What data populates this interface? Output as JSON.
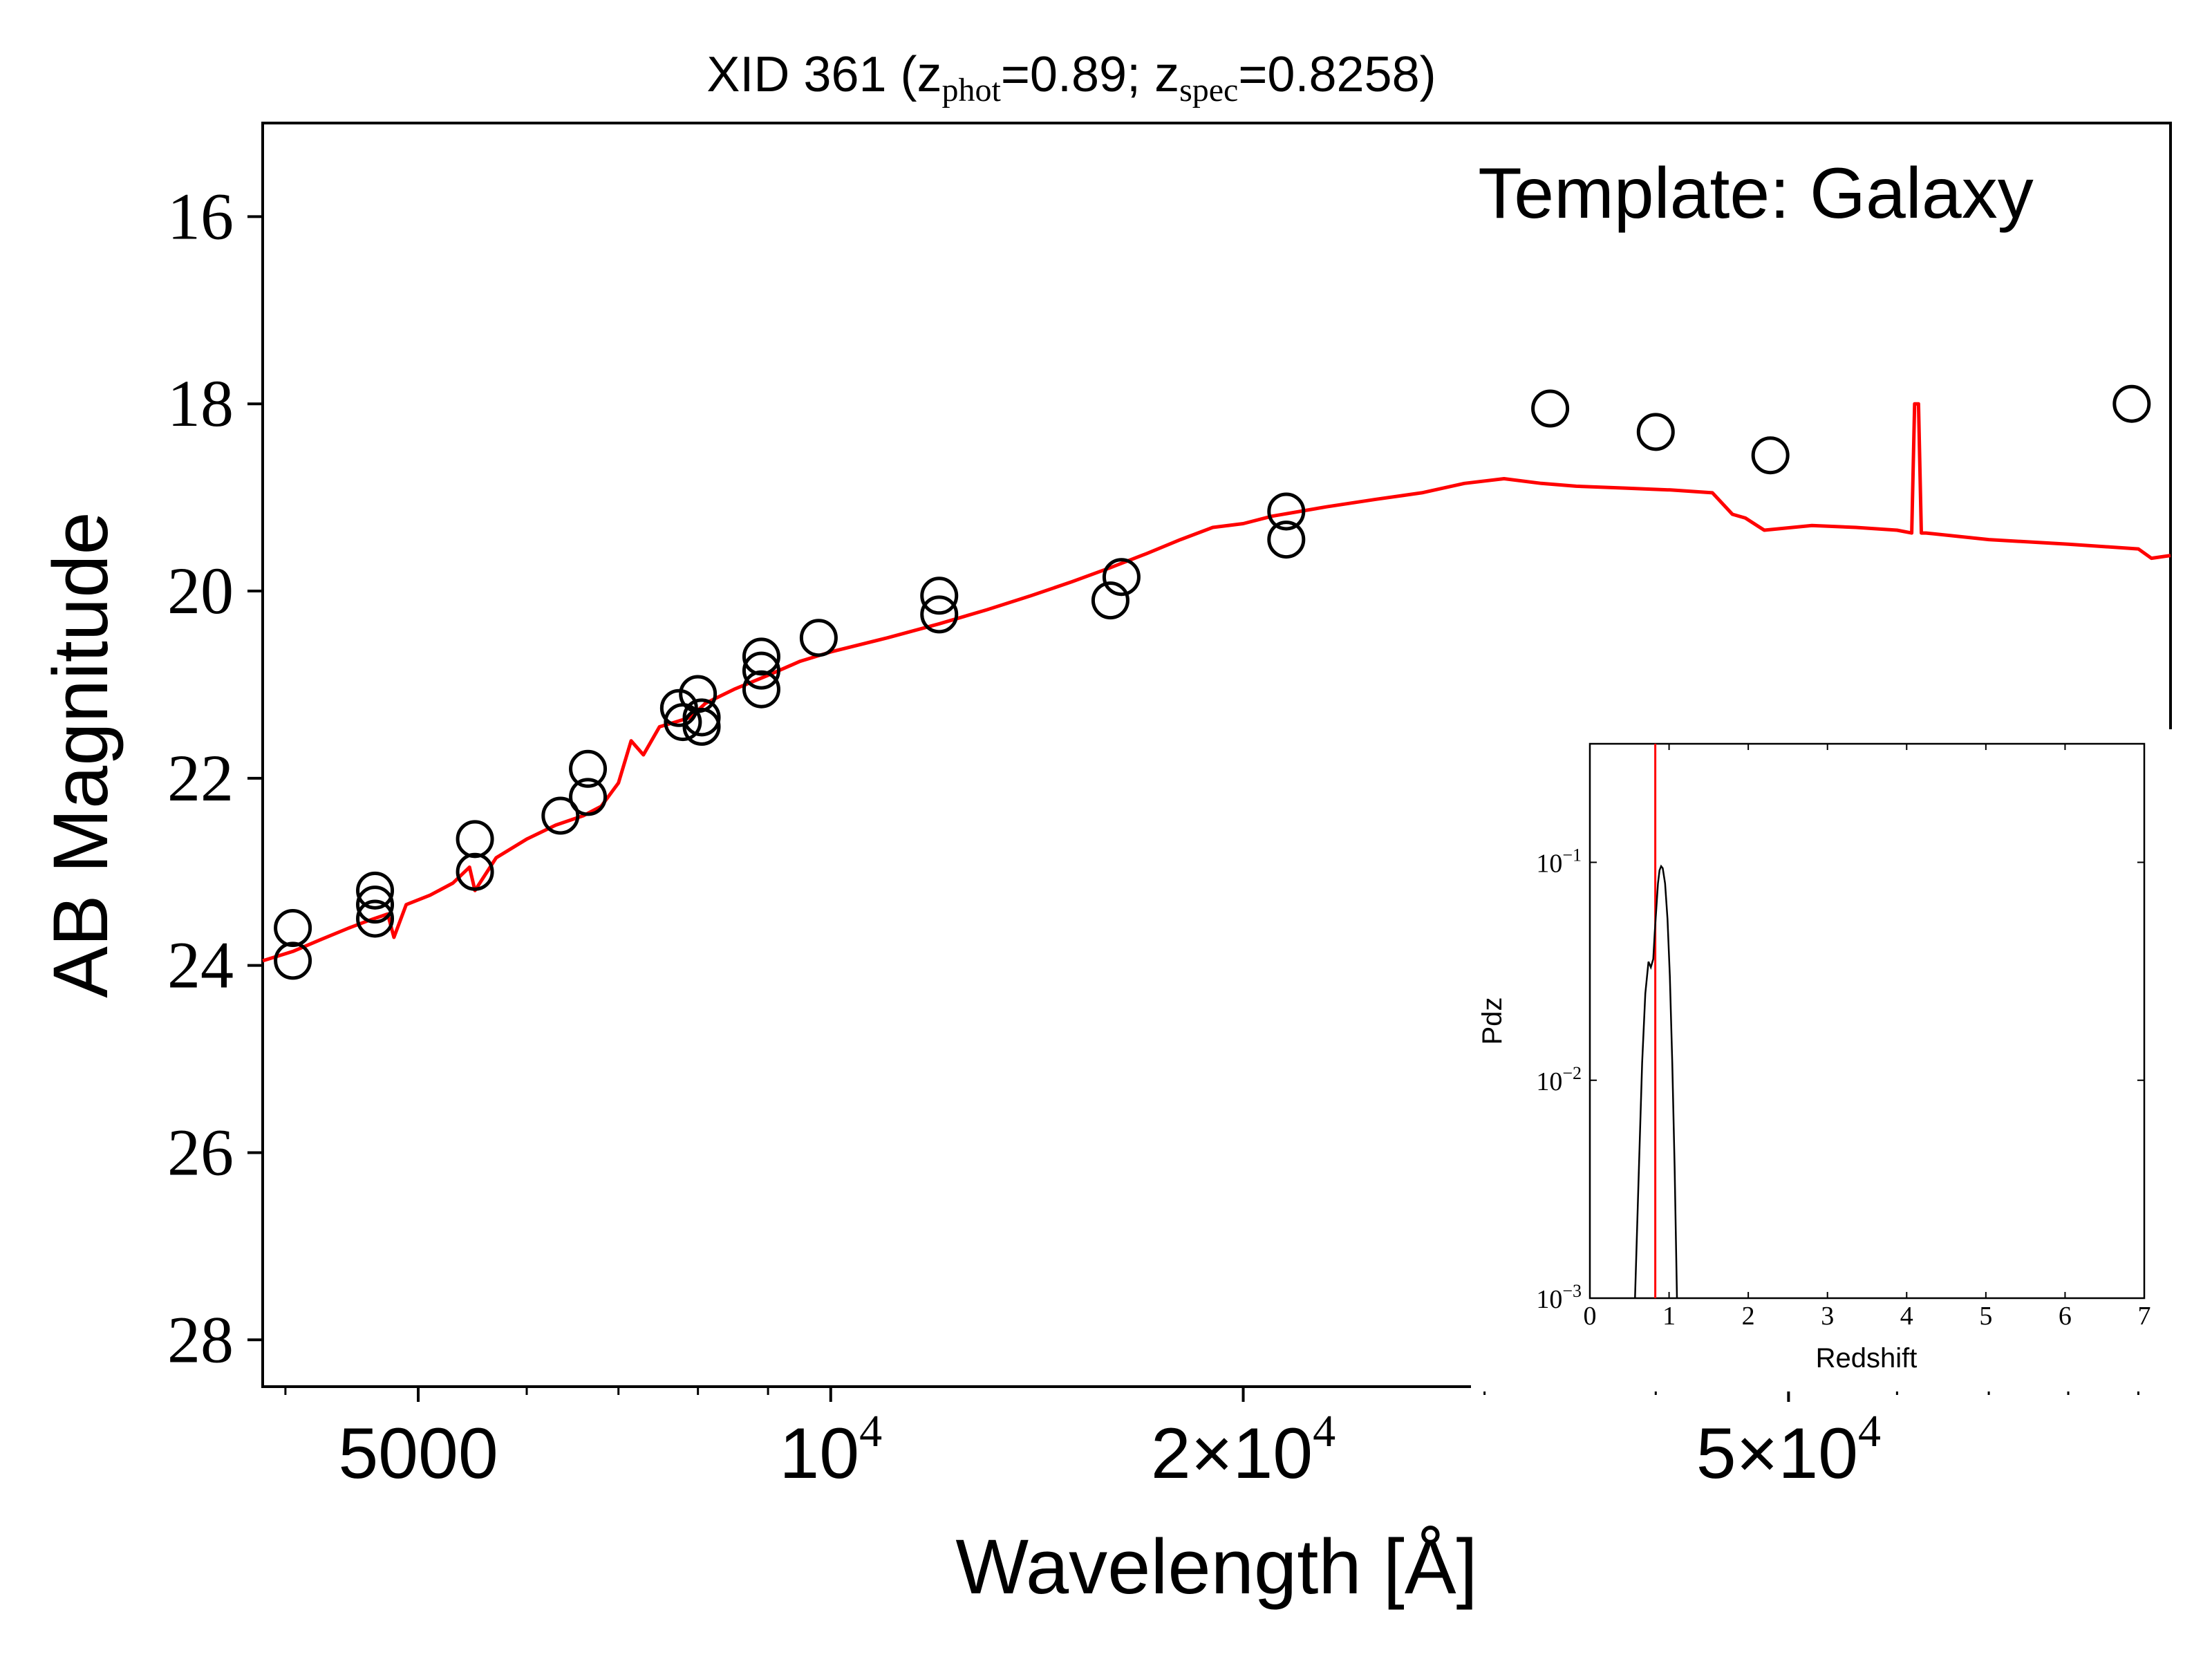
{
  "chart_data": [
    {
      "type": "scatter",
      "title": {
        "prefix": "XID 361 (z",
        "sub1": "phot",
        "mid": "=0.89; z",
        "sub2": "spec",
        "suffix": "=0.8258)"
      },
      "xlabel": "Wavelength [Å]",
      "ylabel": "AB Magnitude",
      "xscale": "log",
      "xlim": [
        3850,
        95000
      ],
      "ylim": [
        28.5,
        15.0
      ],
      "y_inverted": true,
      "grid": false,
      "annotation": "Template: Galaxy",
      "x_ticks": [
        {
          "value": 5000,
          "base": "5000",
          "sup": ""
        },
        {
          "value": 10000,
          "base": "10",
          "sup": "4"
        },
        {
          "value": 20000,
          "base": "2×10",
          "sup": "4"
        },
        {
          "value": 50000,
          "base": "5×10",
          "sup": "4"
        }
      ],
      "x_minor_ticks": [
        4000,
        6000,
        7000,
        8000,
        9000,
        30000,
        40000,
        60000,
        70000,
        80000,
        90000
      ],
      "y_ticks": [
        {
          "value": 16,
          "label": "16"
        },
        {
          "value": 18,
          "label": "18"
        },
        {
          "value": 20,
          "label": "20"
        },
        {
          "value": 22,
          "label": "22"
        },
        {
          "value": 24,
          "label": "24"
        },
        {
          "value": 26,
          "label": "26"
        },
        {
          "value": 28,
          "label": "28"
        }
      ],
      "series": [
        {
          "type": "line",
          "color": "#ff0000",
          "x": [
            3850,
            4050,
            4250,
            4450,
            4600,
            4750,
            4800,
            4900,
            5100,
            5300,
            5450,
            5500,
            5700,
            6000,
            6300,
            6600,
            6800,
            7000,
            7150,
            7300,
            7500,
            7700,
            7900,
            8100,
            8500,
            9000,
            9500,
            10000,
            11000,
            12000,
            13000,
            14000,
            15000,
            16000,
            17000,
            18000,
            19000,
            20000,
            21000,
            23000,
            25000,
            27000,
            29000,
            31000,
            33000,
            35000,
            38000,
            41000,
            44000,
            45500,
            46500,
            48000,
            52000,
            56000,
            60000,
            61500,
            61800,
            62200,
            62500,
            63000,
            70000,
            80000,
            90000,
            92000,
            95000
          ],
          "y": [
            23.95,
            23.85,
            23.72,
            23.6,
            23.52,
            23.45,
            23.7,
            23.35,
            23.25,
            23.12,
            22.95,
            23.2,
            22.85,
            22.65,
            22.5,
            22.4,
            22.3,
            22.05,
            21.6,
            21.75,
            21.45,
            21.4,
            21.35,
            21.2,
            21.05,
            20.9,
            20.75,
            20.65,
            20.5,
            20.35,
            20.2,
            20.05,
            19.9,
            19.75,
            19.6,
            19.45,
            19.32,
            19.28,
            19.2,
            19.1,
            19.02,
            18.95,
            18.85,
            18.8,
            18.85,
            18.88,
            18.9,
            18.92,
            18.95,
            19.18,
            19.22,
            19.35,
            19.3,
            19.32,
            19.35,
            19.38,
            18.0,
            18.0,
            19.38,
            19.38,
            19.45,
            19.5,
            19.55,
            19.65,
            19.62
          ]
        },
        {
          "type": "scatter",
          "marker": "open-circle",
          "color": "#000000",
          "points": [
            [
              4050,
              23.6
            ],
            [
              4050,
              23.95
            ],
            [
              4650,
              23.2
            ],
            [
              4650,
              23.35
            ],
            [
              4650,
              23.5
            ],
            [
              5500,
              22.65
            ],
            [
              5500,
              23.0
            ],
            [
              6350,
              22.4
            ],
            [
              6650,
              21.9
            ],
            [
              6650,
              22.2
            ],
            [
              7750,
              21.25
            ],
            [
              7800,
              21.4
            ],
            [
              8000,
              21.1
            ],
            [
              8050,
              21.35
            ],
            [
              8050,
              21.45
            ],
            [
              8900,
              20.7
            ],
            [
              8900,
              20.85
            ],
            [
              8900,
              21.05
            ],
            [
              9800,
              20.5
            ],
            [
              12000,
              20.05
            ],
            [
              12000,
              20.25
            ],
            [
              16000,
              20.1
            ],
            [
              16300,
              19.85
            ],
            [
              21500,
              19.15
            ],
            [
              21500,
              19.45
            ],
            [
              33500,
              18.05
            ],
            [
              40000,
              18.3
            ],
            [
              48500,
              18.55
            ],
            [
              89000,
              18.0
            ]
          ]
        }
      ]
    },
    {
      "type": "line",
      "xlabel": "Redshift",
      "ylabel": "Pdz",
      "xlim": [
        0,
        7
      ],
      "yscale": "log",
      "ylim": [
        0.001,
        0.35
      ],
      "grid": false,
      "x_ticks": [
        "0",
        "1",
        "2",
        "3",
        "4",
        "5",
        "6",
        "7"
      ],
      "y_ticks": [
        {
          "value": 0.1,
          "base": "10",
          "sup": "−1"
        },
        {
          "value": 0.01,
          "base": "10",
          "sup": "−2"
        },
        {
          "value": 0.001,
          "base": "10",
          "sup": "−3"
        }
      ],
      "vline": {
        "x": 0.8258,
        "color": "#ff0000"
      },
      "series": [
        {
          "name": "",
          "color": "#000000",
          "x": [
            0.57,
            0.62,
            0.66,
            0.7,
            0.74,
            0.77,
            0.8,
            0.82,
            0.84,
            0.86,
            0.88,
            0.9,
            0.92,
            0.95,
            0.98,
            1.01,
            1.04,
            1.07,
            1.1
          ],
          "y": [
            0.001,
            0.004,
            0.012,
            0.025,
            0.035,
            0.033,
            0.036,
            0.048,
            0.062,
            0.08,
            0.092,
            0.096,
            0.094,
            0.08,
            0.055,
            0.03,
            0.012,
            0.004,
            0.001
          ]
        }
      ]
    }
  ]
}
